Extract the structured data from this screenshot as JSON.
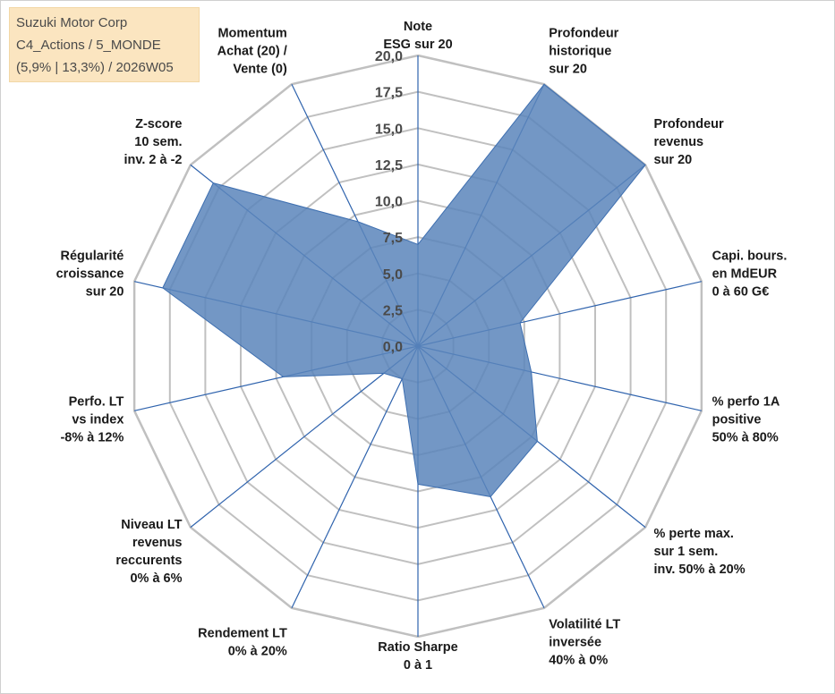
{
  "info_box": {
    "company": "Suzuki Motor Corp",
    "category": "C4_Actions / 5_MONDE",
    "stats": "(5,9% | 13,3%) / 2026W05",
    "bg_color": "#fbe5c0"
  },
  "colors": {
    "fill": "#5b85bb",
    "stroke": "#3e6fb0",
    "spoke": "#2f63ad",
    "grid": "#c0c0c0"
  },
  "chart_data": {
    "type": "radar",
    "title": "",
    "rmin": 0,
    "rmax": 20,
    "tick_step": 2.5,
    "tick_labels": [
      "0,0",
      "2,5",
      "5,0",
      "7,5",
      "10,0",
      "12,5",
      "15,0",
      "17,5",
      "20,0"
    ],
    "categories": [
      [
        "Note",
        "ESG sur 20"
      ],
      [
        "Profondeur",
        "historique",
        "sur 20"
      ],
      [
        "Profondeur",
        "revenus",
        "sur 20"
      ],
      [
        "Capi. bours.",
        "en MdEUR",
        "0 à 60 G€"
      ],
      [
        "% perfo 1A",
        "positive",
        "50% à 80%"
      ],
      [
        "% perte max.",
        "sur 1 sem.",
        "inv. 50% à 20%"
      ],
      [
        "Volatilité LT",
        "inversée",
        "40% à 0%"
      ],
      [
        "Ratio Sharpe",
        "0 à 1"
      ],
      [
        "Rendement LT",
        "0% à 20%"
      ],
      [
        "Niveau LT",
        "revenus",
        "reccurents",
        "0% à 6%"
      ],
      [
        "Perfo. LT",
        "vs index",
        "-8% à 12%"
      ],
      [
        "Régularité",
        "croissance",
        "sur 20"
      ],
      [
        "Z-score",
        "10 sem.",
        "inv. 2 à -2"
      ],
      [
        "Momentum",
        "Achat (20) /",
        "Vente (0)"
      ]
    ],
    "series": [
      {
        "name": "Suzuki Motor Corp",
        "values": [
          7.0,
          20.0,
          20.0,
          7.2,
          8.0,
          10.5,
          11.5,
          9.5,
          2.5,
          3.0,
          9.5,
          18.0,
          18.0,
          9.5
        ]
      }
    ]
  }
}
